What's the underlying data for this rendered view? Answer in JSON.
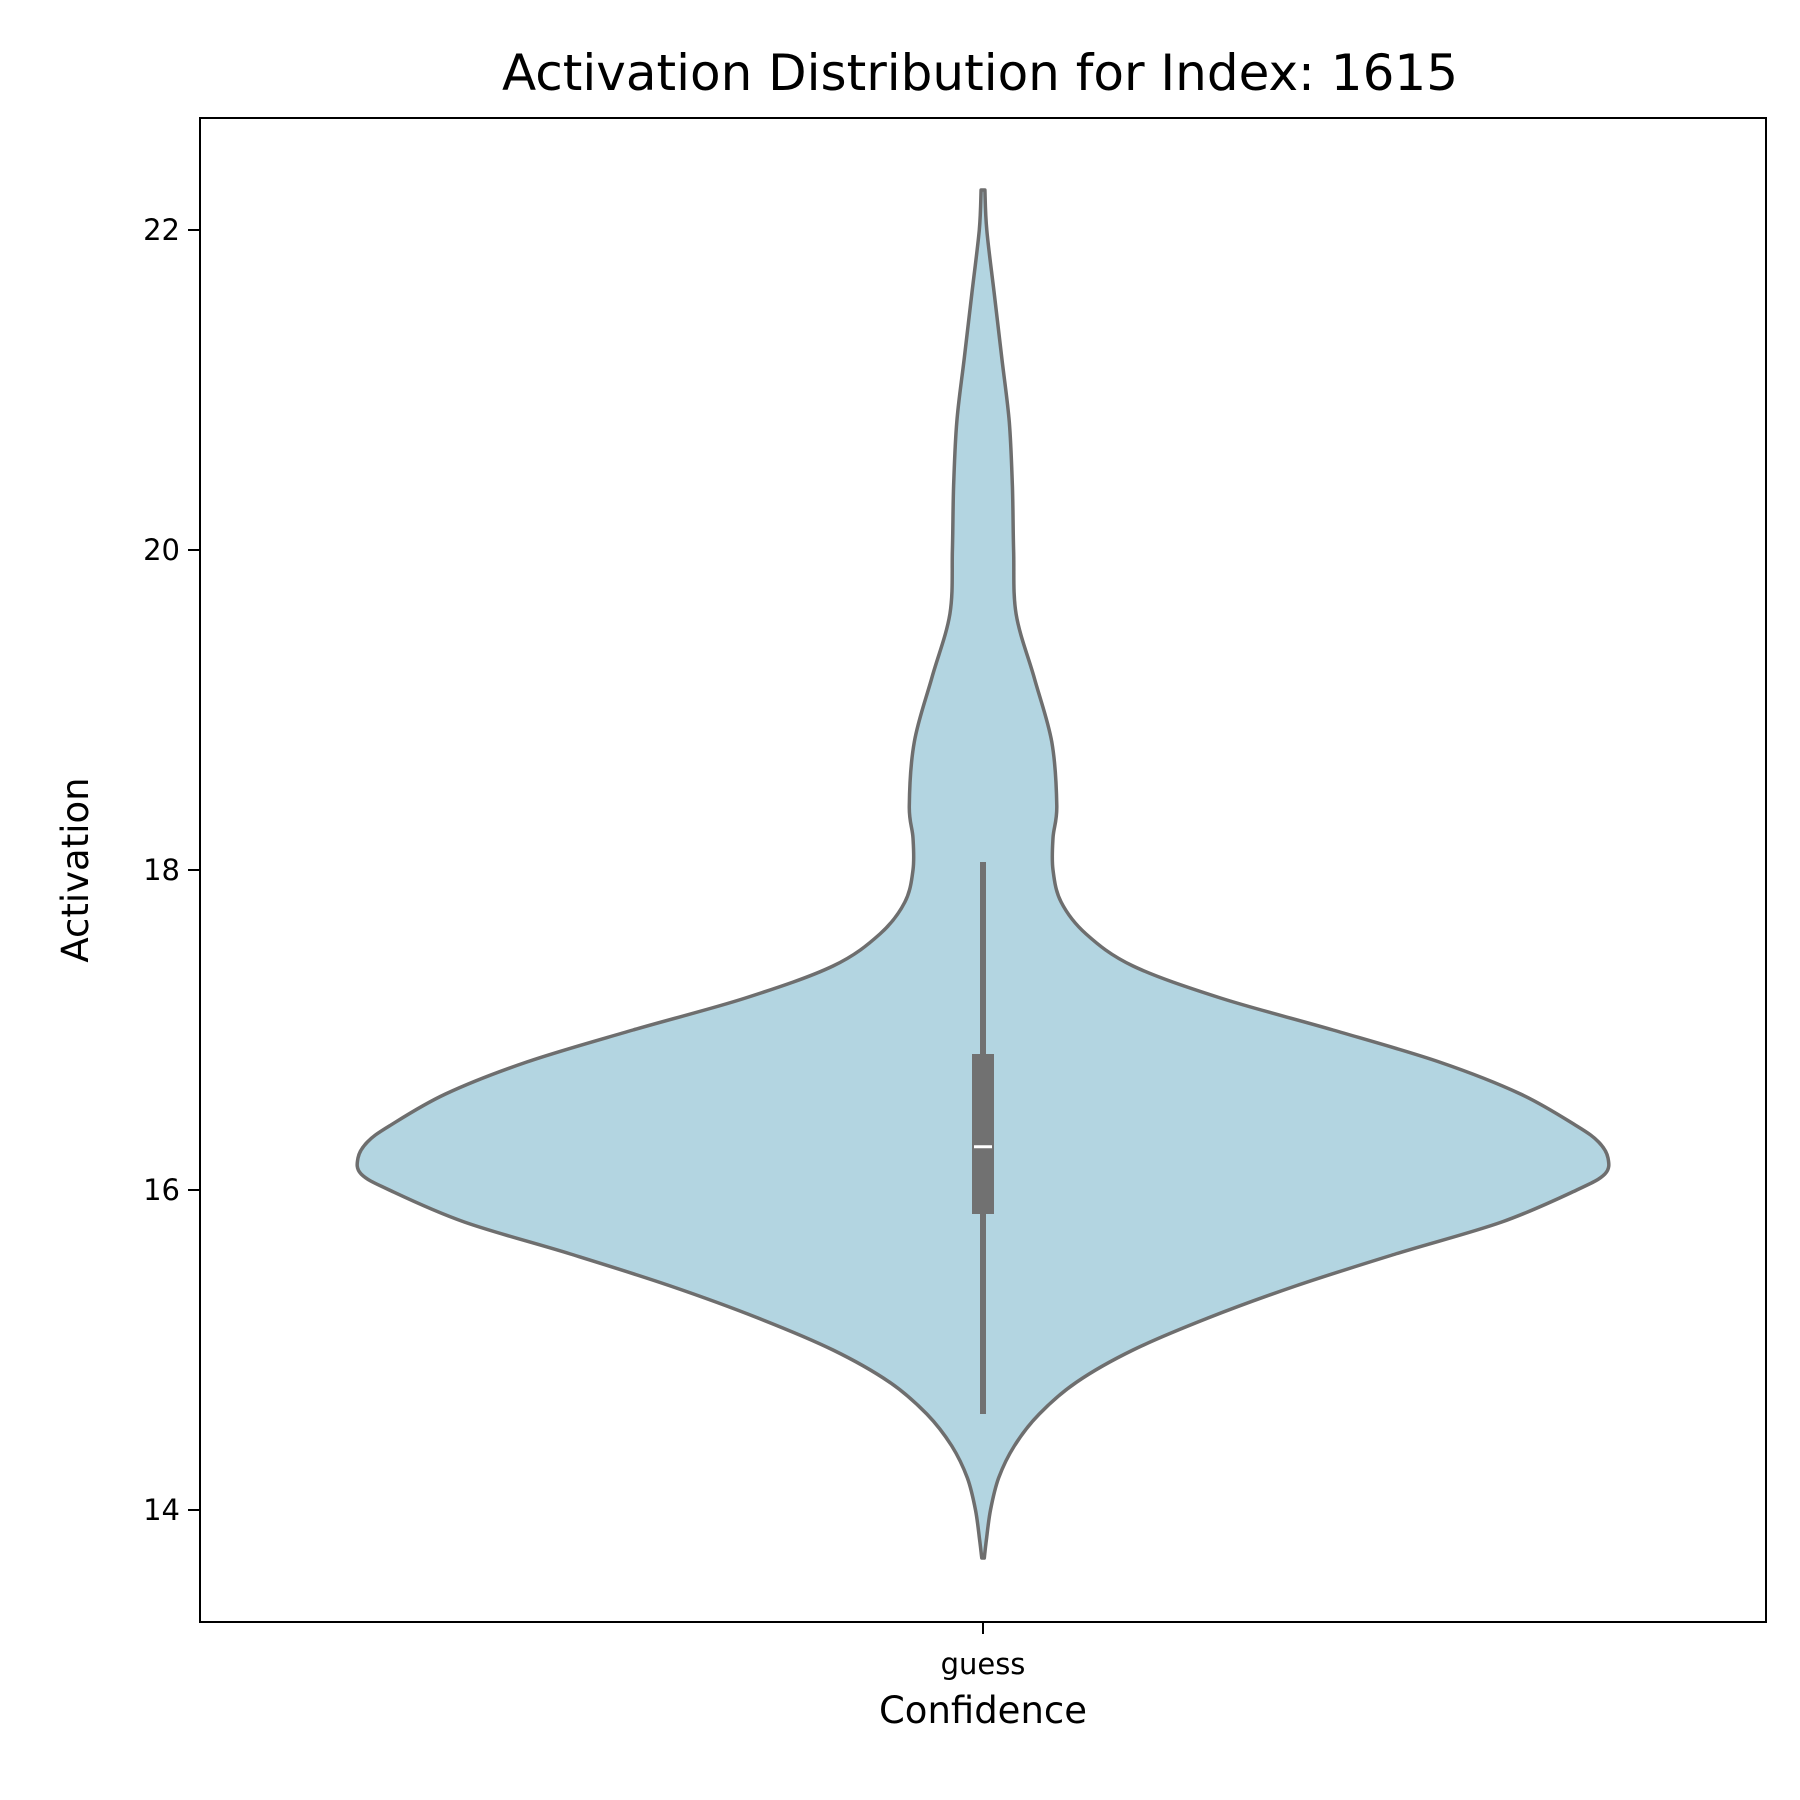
{
  "chart_data": {
    "type": "violin",
    "title": "Activation Distribution for Index: 1615",
    "xlabel": "Confidence",
    "ylabel": "Activation",
    "categories": [
      "guess"
    ],
    "ylim": [
      13.3,
      22.7
    ],
    "yticks": [
      14,
      16,
      18,
      20,
      22
    ],
    "grid": false,
    "legend": "none",
    "colors": {
      "violin_fill": "#b3d5e1",
      "violin_edge": "#6e6e6e",
      "box": "#717171",
      "median": "#ffffff",
      "axes": "#000000"
    },
    "series": [
      {
        "category": "guess",
        "min": 14.6,
        "q1": 15.85,
        "median": 16.27,
        "q3": 16.85,
        "max": 18.05,
        "kde_range": [
          13.7,
          22.25
        ],
        "density_profile": [
          [
            22.25,
            0.003
          ],
          [
            22.0,
            0.006
          ],
          [
            21.6,
            0.018
          ],
          [
            21.2,
            0.03
          ],
          [
            20.8,
            0.042
          ],
          [
            20.4,
            0.047
          ],
          [
            20.0,
            0.049
          ],
          [
            19.6,
            0.053
          ],
          [
            19.2,
            0.082
          ],
          [
            18.8,
            0.11
          ],
          [
            18.4,
            0.118
          ],
          [
            18.2,
            0.112
          ],
          [
            18.0,
            0.112
          ],
          [
            17.8,
            0.125
          ],
          [
            17.6,
            0.165
          ],
          [
            17.4,
            0.24
          ],
          [
            17.2,
            0.38
          ],
          [
            17.0,
            0.56
          ],
          [
            16.8,
            0.73
          ],
          [
            16.6,
            0.86
          ],
          [
            16.4,
            0.95
          ],
          [
            16.3,
            0.985
          ],
          [
            16.2,
            1.0
          ],
          [
            16.1,
            0.995
          ],
          [
            16.0,
            0.95
          ],
          [
            15.8,
            0.83
          ],
          [
            15.6,
            0.66
          ],
          [
            15.4,
            0.5
          ],
          [
            15.2,
            0.36
          ],
          [
            15.0,
            0.24
          ],
          [
            14.8,
            0.15
          ],
          [
            14.6,
            0.09
          ],
          [
            14.4,
            0.05
          ],
          [
            14.2,
            0.025
          ],
          [
            14.0,
            0.012
          ],
          [
            13.8,
            0.005
          ],
          [
            13.7,
            0.002
          ]
        ]
      }
    ]
  }
}
